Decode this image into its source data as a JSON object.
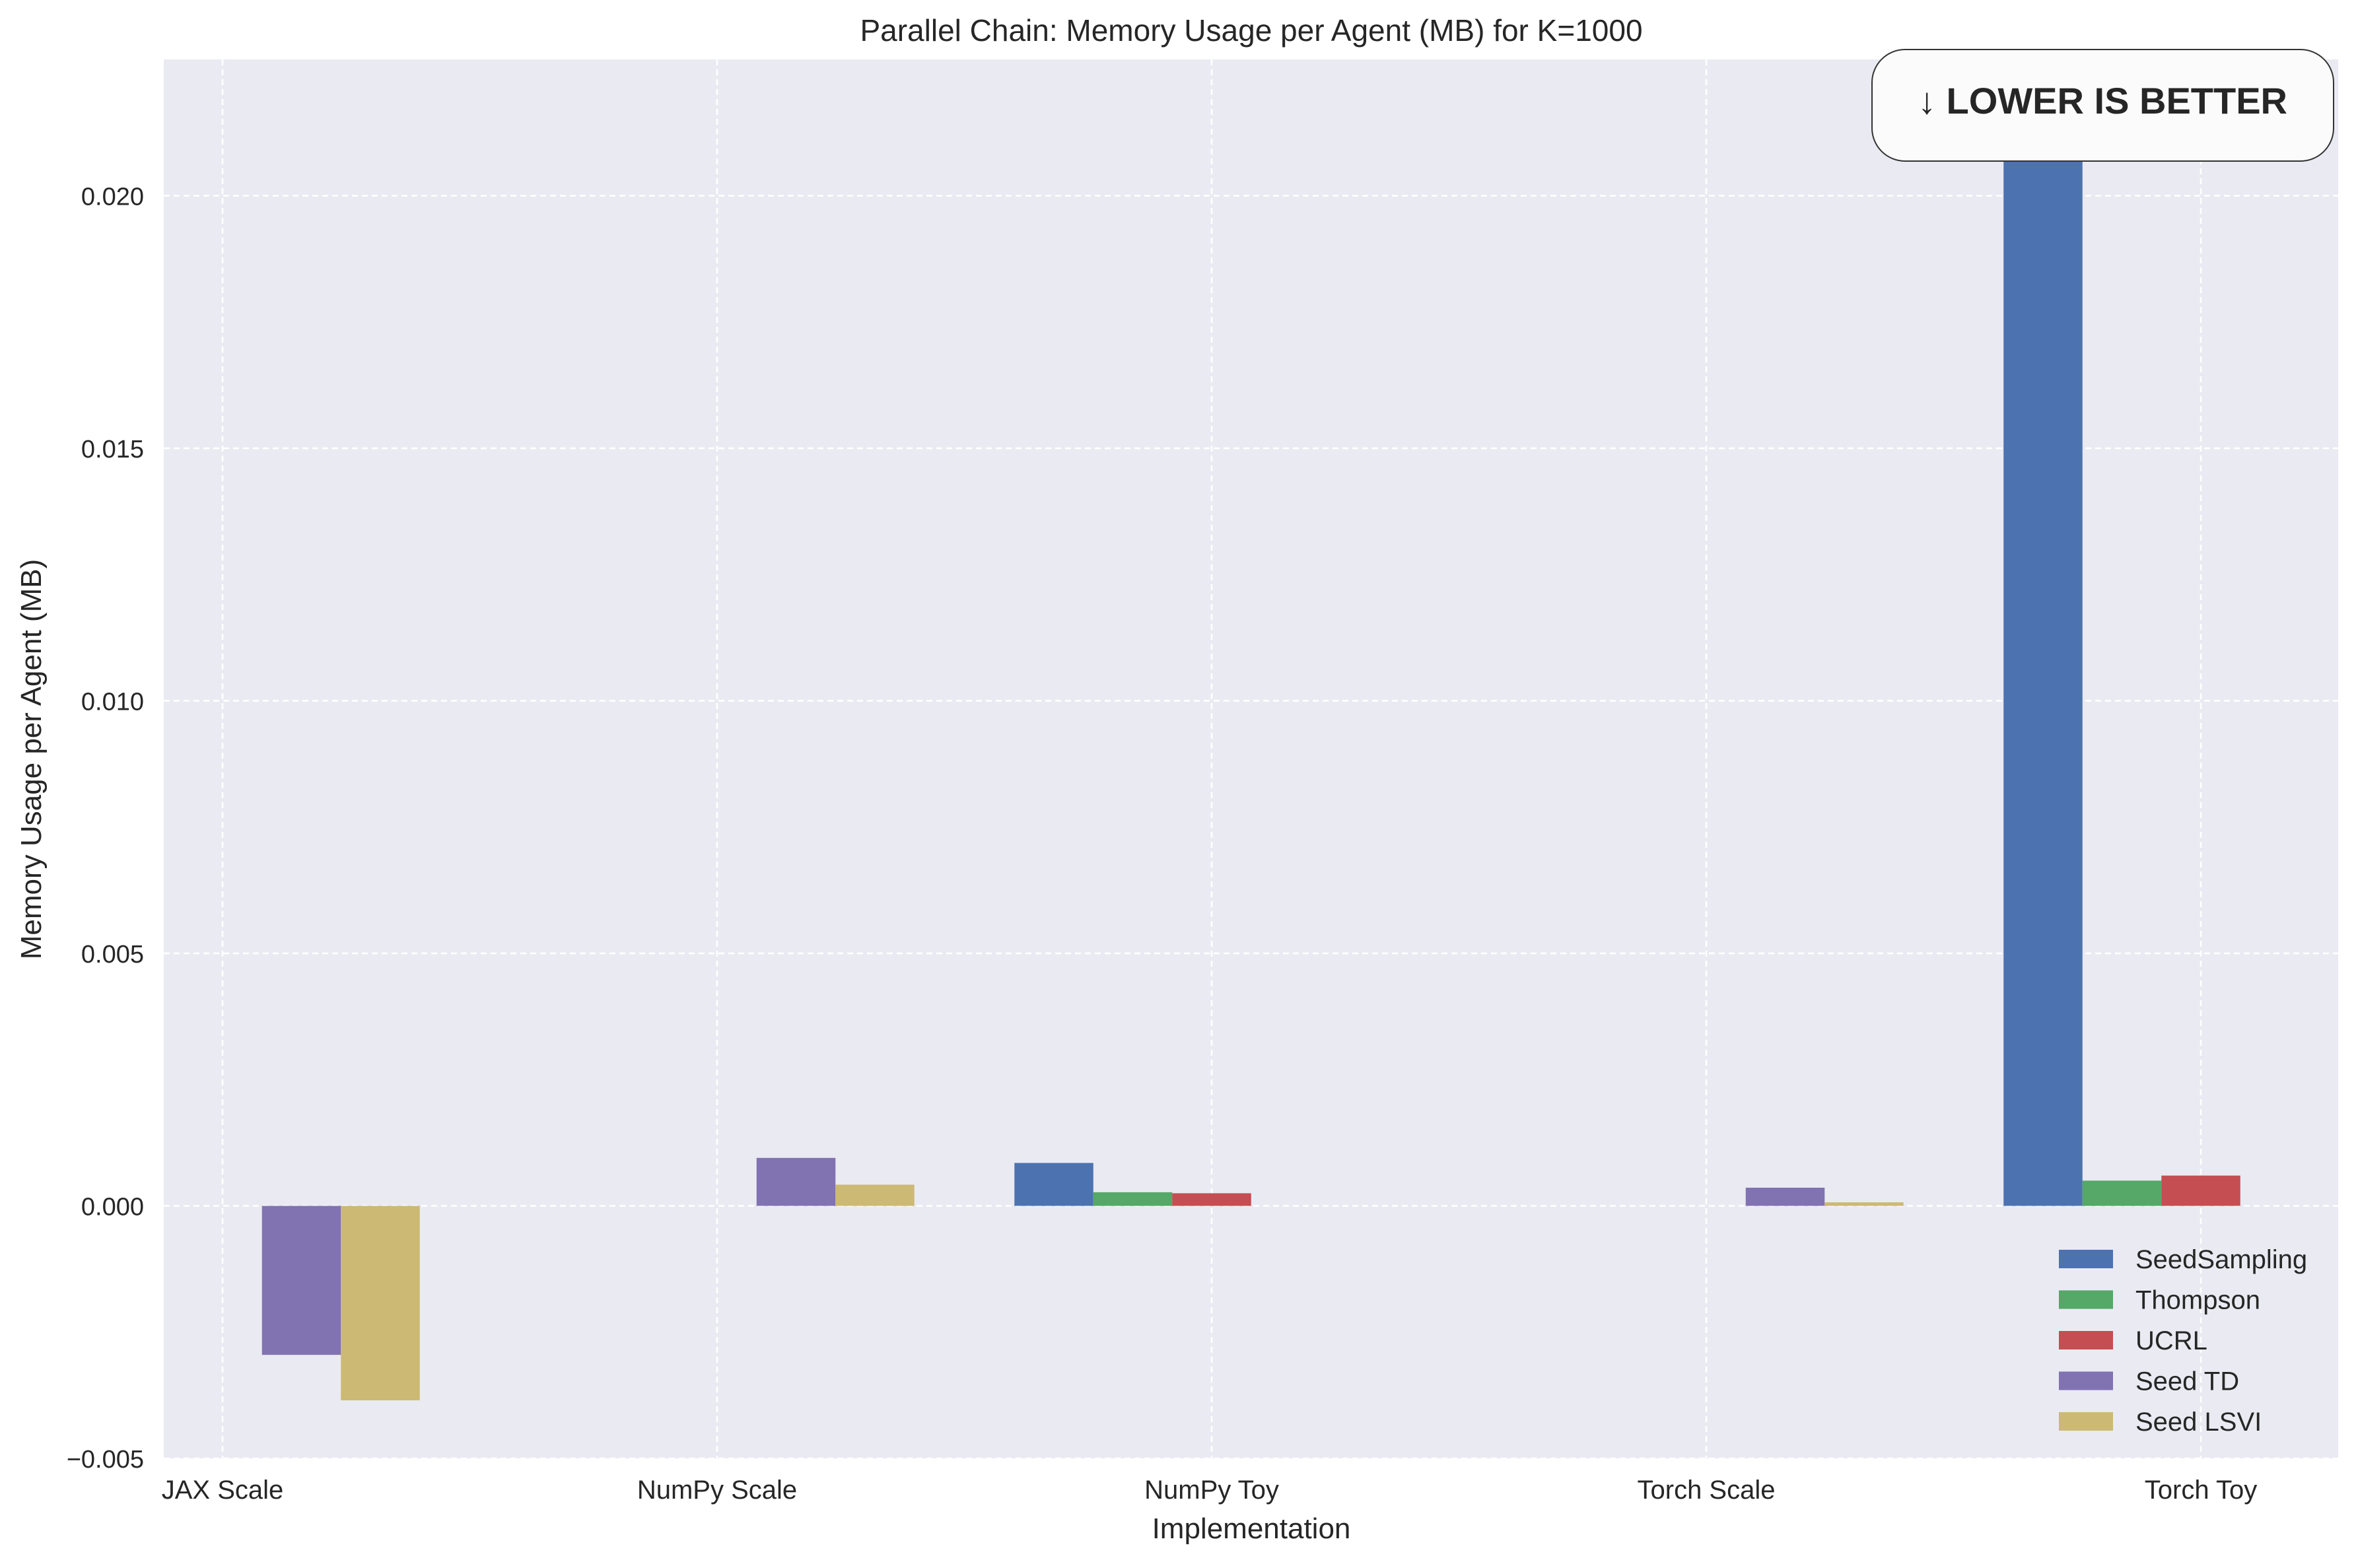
{
  "chart_data": {
    "type": "bar",
    "title": "Parallel Chain: Memory Usage per Agent (MB) for K=1000",
    "xlabel": "Implementation",
    "ylabel": "Memory Usage per Agent (MB)",
    "categories": [
      "JAX Scale",
      "NumPy Scale",
      "NumPy Toy",
      "Torch Scale",
      "Torch Toy"
    ],
    "ylim": [
      -0.005,
      0.0227
    ],
    "yticks": [
      -0.005,
      0.0,
      0.005,
      0.01,
      0.015,
      0.02
    ],
    "ytick_labels": [
      "−0.005",
      "0.000",
      "0.005",
      "0.010",
      "0.015",
      "0.020"
    ],
    "grid": true,
    "legend_position": "lower-right",
    "annotation": "↓ LOWER IS BETTER",
    "series": [
      {
        "name": "SeedSampling",
        "color": "#4C72B0",
        "values": [
          null,
          null,
          0.00085,
          null,
          0.0215
        ]
      },
      {
        "name": "Thompson",
        "color": "#55A868",
        "values": [
          null,
          null,
          0.00027,
          null,
          0.0005
        ]
      },
      {
        "name": "UCRL",
        "color": "#C44E52",
        "values": [
          null,
          null,
          0.00025,
          null,
          0.0006
        ]
      },
      {
        "name": "Seed TD",
        "color": "#8172B2",
        "values": [
          -0.00295,
          0.00095,
          null,
          0.00036,
          null
        ]
      },
      {
        "name": "Seed LSVI",
        "color": "#CCB974",
        "values": [
          -0.00385,
          0.00042,
          null,
          7e-05,
          null
        ]
      }
    ]
  }
}
